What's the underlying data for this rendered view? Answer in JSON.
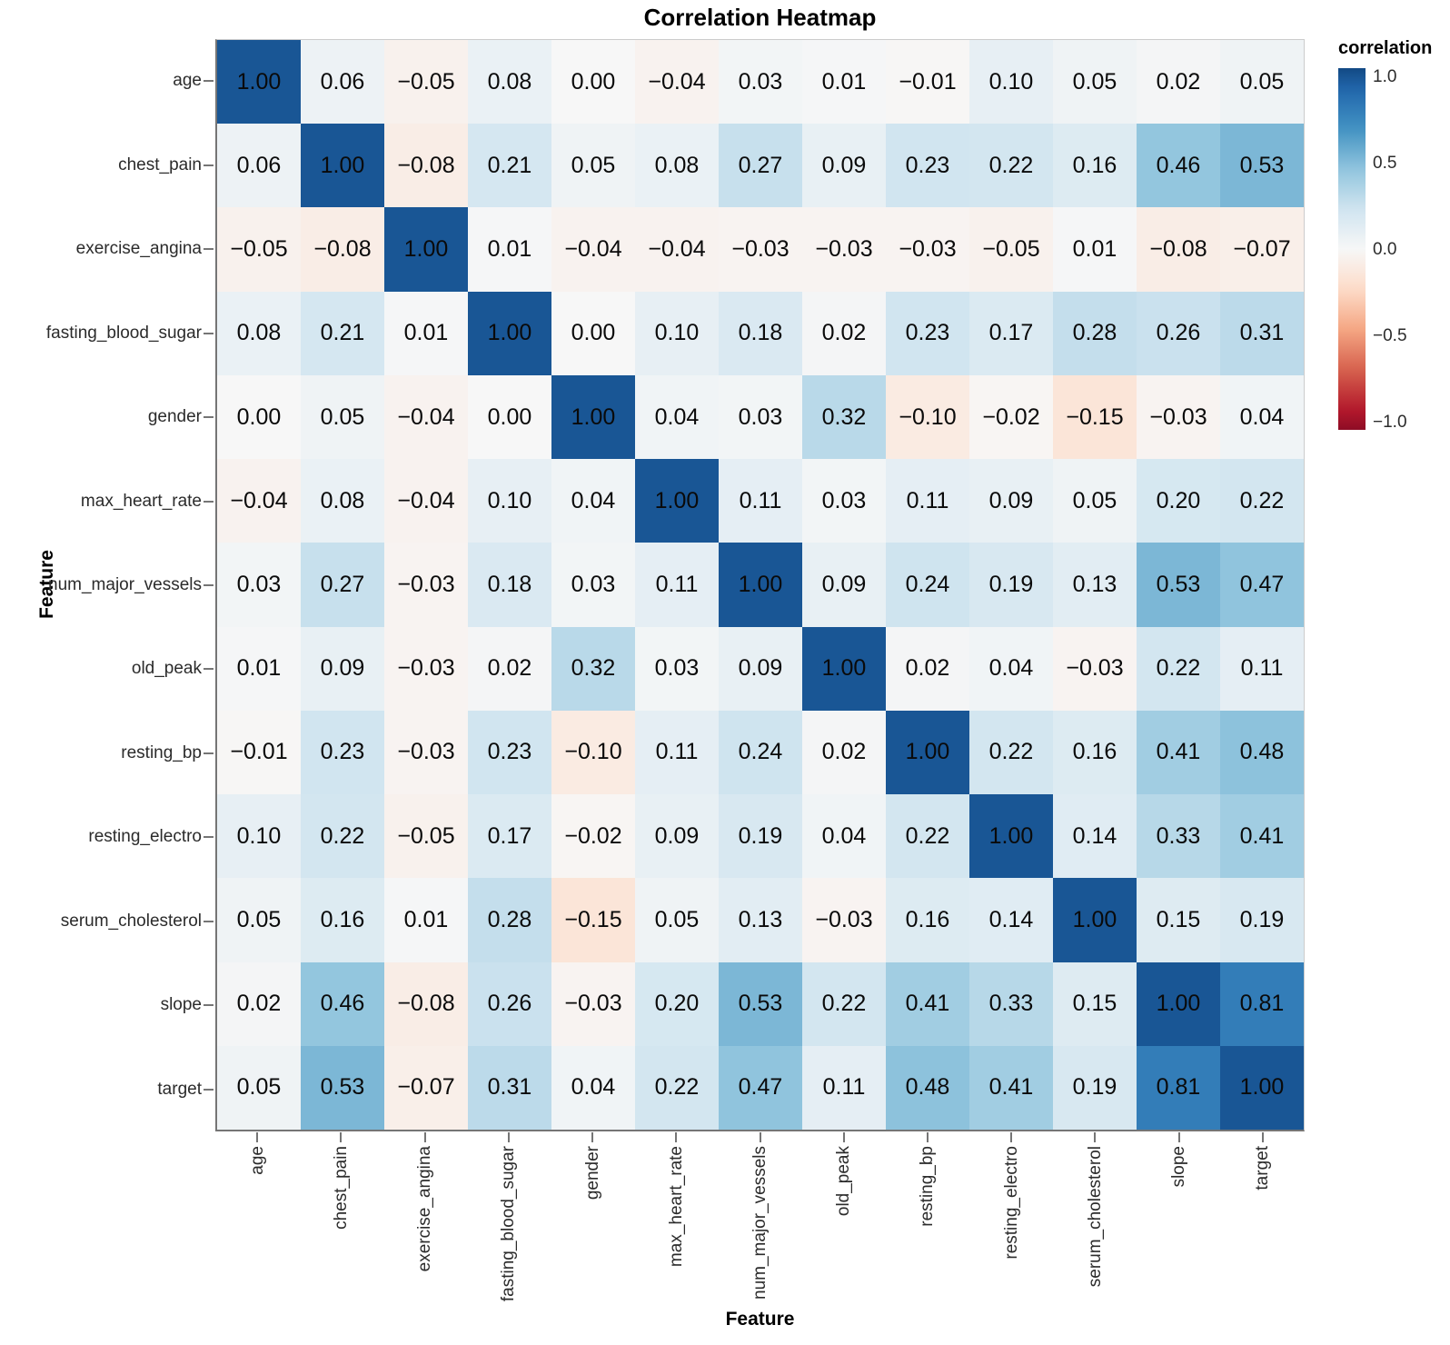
{
  "chart_data": {
    "type": "heatmap",
    "title": "Correlation Heatmap",
    "xlabel": "Feature",
    "ylabel": "Feature",
    "legend": {
      "title": "correlation",
      "ticks": [
        1.0,
        0.5,
        0.0,
        -0.5,
        -1.0
      ]
    },
    "features": [
      "age",
      "chest_pain",
      "exercise_angina",
      "fasting_blood_sugar",
      "gender",
      "max_heart_rate",
      "num_major_vessels",
      "old_peak",
      "resting_bp",
      "resting_electro",
      "serum_cholesterol",
      "slope",
      "target"
    ],
    "matrix": [
      [
        1.0,
        0.06,
        -0.05,
        0.08,
        0.0,
        -0.04,
        0.03,
        0.01,
        -0.01,
        0.1,
        0.05,
        0.02,
        0.05
      ],
      [
        0.06,
        1.0,
        -0.08,
        0.21,
        0.05,
        0.08,
        0.27,
        0.09,
        0.23,
        0.22,
        0.16,
        0.46,
        0.53
      ],
      [
        -0.05,
        -0.08,
        1.0,
        0.01,
        -0.04,
        -0.04,
        -0.03,
        -0.03,
        -0.03,
        -0.05,
        0.01,
        -0.08,
        -0.07
      ],
      [
        0.08,
        0.21,
        0.01,
        1.0,
        0.0,
        0.1,
        0.18,
        0.02,
        0.23,
        0.17,
        0.28,
        0.26,
        0.31
      ],
      [
        0.0,
        0.05,
        -0.04,
        0.0,
        1.0,
        0.04,
        0.03,
        0.32,
        -0.1,
        -0.02,
        -0.15,
        -0.03,
        0.04
      ],
      [
        -0.04,
        0.08,
        -0.04,
        0.1,
        0.04,
        1.0,
        0.11,
        0.03,
        0.11,
        0.09,
        0.05,
        0.2,
        0.22
      ],
      [
        0.03,
        0.27,
        -0.03,
        0.18,
        0.03,
        0.11,
        1.0,
        0.09,
        0.24,
        0.19,
        0.13,
        0.53,
        0.47
      ],
      [
        0.01,
        0.09,
        -0.03,
        0.02,
        0.32,
        0.03,
        0.09,
        1.0,
        0.02,
        0.04,
        -0.03,
        0.22,
        0.11
      ],
      [
        -0.01,
        0.23,
        -0.03,
        0.23,
        -0.1,
        0.11,
        0.24,
        0.02,
        1.0,
        0.22,
        0.16,
        0.41,
        0.48
      ],
      [
        0.1,
        0.22,
        -0.05,
        0.17,
        -0.02,
        0.09,
        0.19,
        0.04,
        0.22,
        1.0,
        0.14,
        0.33,
        0.41
      ],
      [
        0.05,
        0.16,
        0.01,
        0.28,
        -0.15,
        0.05,
        0.13,
        -0.03,
        0.16,
        0.14,
        1.0,
        0.15,
        0.19
      ],
      [
        0.02,
        0.46,
        -0.08,
        0.26,
        -0.03,
        0.2,
        0.53,
        0.22,
        0.41,
        0.33,
        0.15,
        1.0,
        0.81
      ],
      [
        0.05,
        0.53,
        -0.07,
        0.31,
        0.04,
        0.22,
        0.47,
        0.11,
        0.48,
        0.41,
        0.19,
        0.81,
        1.0
      ]
    ],
    "color_scale": {
      "name": "RdBu",
      "domain": [
        -1.0,
        1.0
      ],
      "palette": [
        "#67001f",
        "#b2182b",
        "#d6604d",
        "#f4a582",
        "#fddbc7",
        "#f7f7f7",
        "#d1e5f0",
        "#92c5de",
        "#4393c3",
        "#2166ac",
        "#053061"
      ],
      "palette_window": [
        0.07,
        0.93
      ],
      "grid": false,
      "legend_position": "right"
    }
  }
}
